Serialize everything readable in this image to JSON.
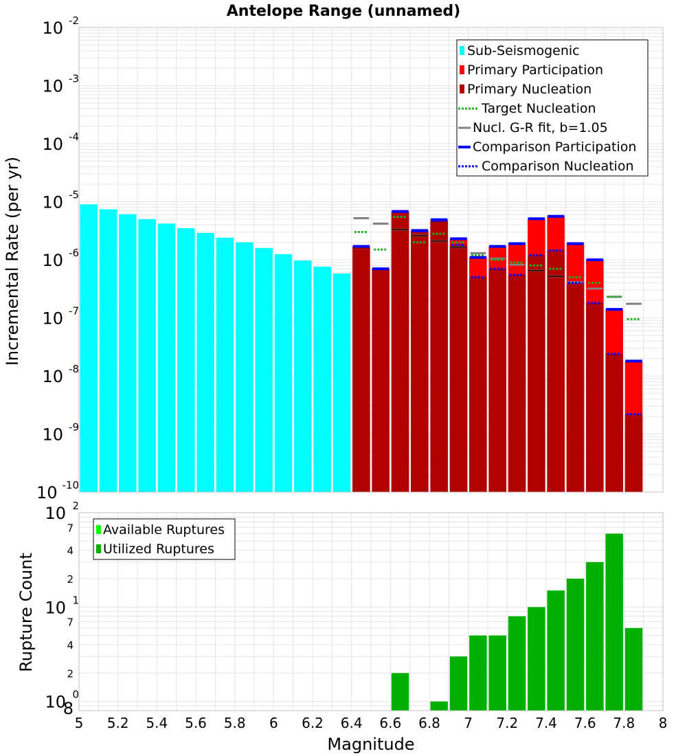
{
  "chart_data": [
    {
      "type": "bar",
      "title": "Antelope Range (unnamed)",
      "xlabel": "",
      "ylabel": "Incremental Rate (per yr)",
      "yscale": "log",
      "ylim": [
        1e-10,
        0.01
      ],
      "xlim": [
        5.0,
        8.0
      ],
      "x_ticks": [
        "5",
        "5.2",
        "5.4",
        "5.6",
        "5.8",
        "6",
        "6.2",
        "6.4",
        "6.6",
        "6.8",
        "7",
        "7.2",
        "7.4",
        "7.6",
        "7.8",
        "8"
      ],
      "y_ticks": [
        {
          "base": "10",
          "exp": "-10"
        },
        {
          "base": "10",
          "exp": "-9"
        },
        {
          "base": "10",
          "exp": "-8"
        },
        {
          "base": "10",
          "exp": "-7"
        },
        {
          "base": "10",
          "exp": "-6"
        },
        {
          "base": "10",
          "exp": "-5"
        },
        {
          "base": "10",
          "exp": "-4"
        },
        {
          "base": "10",
          "exp": "-3"
        },
        {
          "base": "10",
          "exp": "-2"
        }
      ],
      "legend_position": "top-right",
      "legend": [
        {
          "label": "Sub-Seismogenic",
          "color": "#00ffff",
          "style": "bar"
        },
        {
          "label": "Primary Participation",
          "color": "#ff0000",
          "style": "bar"
        },
        {
          "label": "Primary Nucleation",
          "color": "#b00000",
          "style": "bar"
        },
        {
          "label": "Target Nucleation",
          "color": "#22b022",
          "style": "dotted"
        },
        {
          "label": "Nucl. G-R fit, b=1.05",
          "color": "#808080",
          "style": "solid"
        },
        {
          "label": "Comparison Participation",
          "color": "#0000ff",
          "style": "thick"
        },
        {
          "label": "Comparison Nucleation",
          "color": "#0000ff",
          "style": "dotted"
        }
      ],
      "series": [
        {
          "name": "Sub-Seismogenic",
          "color": "#00ffff",
          "x": [
            5.05,
            5.15,
            5.25,
            5.35,
            5.45,
            5.55,
            5.65,
            5.75,
            5.85,
            5.95,
            6.05,
            6.15,
            6.25,
            6.35
          ],
          "values": [
            9e-06,
            7.4e-06,
            6.1e-06,
            5e-06,
            4.2e-06,
            3.5e-06,
            2.9e-06,
            2.4e-06,
            2e-06,
            1.6e-06,
            1.25e-06,
            9.7e-07,
            7.6e-07,
            5.8e-07
          ]
        },
        {
          "name": "Primary Participation",
          "color": "#ff0000",
          "x": [
            6.45,
            6.55,
            6.65,
            6.75,
            6.85,
            6.95,
            7.05,
            7.15,
            7.25,
            7.35,
            7.45,
            7.55,
            7.65,
            7.75,
            7.85
          ],
          "values": [
            1.7e-06,
            7e-07,
            6.8e-06,
            3.2e-06,
            4.9e-06,
            2.3e-06,
            1.1e-06,
            1.7e-06,
            1.9e-06,
            5.1e-06,
            5.6e-06,
            1.9e-06,
            1e-06,
            1.4e-07,
            1.8e-08
          ]
        },
        {
          "name": "Primary Nucleation",
          "color": "#b00000",
          "x": [
            6.45,
            6.55,
            6.65,
            6.75,
            6.85,
            6.95,
            7.05,
            7.15,
            7.25,
            7.35,
            7.45,
            7.55,
            7.65,
            7.75,
            7.85
          ],
          "values": [
            1.7e-06,
            7e-07,
            6.8e-06,
            3.1e-06,
            4.7e-06,
            1.8e-06,
            5e-07,
            7e-07,
            5.5e-07,
            1.2e-06,
            1.45e-06,
            4e-07,
            1.8e-07,
            2.4e-08,
            2.2e-09
          ]
        },
        {
          "name": "Target Nucleation",
          "color": "#22b022",
          "x": [
            6.45,
            6.55,
            6.65,
            6.75,
            6.85,
            6.95,
            7.05,
            7.15,
            7.25,
            7.35,
            7.45,
            7.55,
            7.65,
            7.75,
            7.85
          ],
          "values": [
            3e-06,
            1.5e-06,
            5.5e-06,
            2e-06,
            2.8e-06,
            2e-06,
            1.2e-06,
            1e-06,
            9e-07,
            8e-07,
            7e-07,
            5e-07,
            4e-07,
            2.3e-07,
            9.5e-08
          ]
        },
        {
          "name": "Nucl. G-R fit, b=1.05",
          "color": "#808080",
          "x": [
            6.45,
            6.55,
            6.65,
            6.75,
            6.85,
            6.95,
            7.05,
            7.15,
            7.25,
            7.35,
            7.45,
            7.55,
            7.65,
            7.75,
            7.85
          ],
          "values": [
            5.2e-06,
            4.2e-06,
            3.3e-06,
            2.6e-06,
            2.1e-06,
            1.65e-06,
            1.3e-06,
            1.05e-06,
            8.2e-07,
            6.5e-07,
            5.2e-07,
            4.1e-07,
            3.2e-07,
            2.3e-07,
            1.75e-07
          ]
        },
        {
          "name": "Comparison Participation",
          "color": "#0000ff",
          "x": [
            6.45,
            6.55,
            6.65,
            6.75,
            6.85,
            6.95,
            7.05,
            7.15,
            7.25,
            7.35,
            7.45,
            7.55,
            7.65,
            7.75,
            7.85
          ],
          "values": [
            1.7e-06,
            7e-07,
            6.8e-06,
            3.2e-06,
            4.9e-06,
            2.3e-06,
            1.1e-06,
            1.7e-06,
            1.9e-06,
            5.1e-06,
            5.6e-06,
            1.9e-06,
            1e-06,
            1.4e-07,
            1.8e-08
          ]
        },
        {
          "name": "Comparison Nucleation",
          "color": "#0000ff",
          "x": [
            6.45,
            6.55,
            6.65,
            6.75,
            6.85,
            6.95,
            7.05,
            7.15,
            7.25,
            7.35,
            7.45,
            7.55,
            7.65,
            7.75,
            7.85
          ],
          "values": [
            1.7e-06,
            7e-07,
            6.8e-06,
            3.1e-06,
            4.7e-06,
            1.8e-06,
            5e-07,
            7e-07,
            5.5e-07,
            1.2e-06,
            1.45e-06,
            4e-07,
            1.8e-07,
            2.4e-08,
            2.2e-09
          ]
        }
      ]
    },
    {
      "type": "bar",
      "title": "",
      "xlabel": "Magnitude",
      "ylabel": "Rupture Count",
      "yscale": "log",
      "ylim": [
        0.8,
        100
      ],
      "xlim": [
        5.0,
        8.0
      ],
      "x_ticks": [
        "5",
        "5.2",
        "5.4",
        "5.6",
        "5.8",
        "6",
        "6.2",
        "6.4",
        "6.6",
        "6.8",
        "7",
        "7.2",
        "7.4",
        "7.6",
        "7.8",
        "8"
      ],
      "y_ticks": [
        {
          "value": 1,
          "base": "10",
          "exp": "0"
        },
        {
          "value": 10,
          "base": "10",
          "exp": "1"
        },
        {
          "value": 100,
          "base": "10",
          "exp": "2"
        }
      ],
      "y_minor_labels": [
        {
          "value": 0.8,
          "label": "8"
        },
        {
          "value": 2,
          "label": "2"
        },
        {
          "value": 4,
          "label": "4"
        },
        {
          "value": 7,
          "label": "7"
        },
        {
          "value": 20,
          "label": "2"
        },
        {
          "value": 40,
          "label": "4"
        },
        {
          "value": 70,
          "label": "7"
        }
      ],
      "legend_position": "top-left",
      "legend": [
        {
          "label": "Available Ruptures",
          "color": "#00ff00",
          "style": "bar"
        },
        {
          "label": "Utilized Ruptures",
          "color": "#00b000",
          "style": "bar"
        }
      ],
      "series": [
        {
          "name": "Utilized Ruptures",
          "color": "#00b000",
          "x": [
            6.65,
            6.85,
            6.95,
            7.05,
            7.15,
            7.25,
            7.35,
            7.45,
            7.55,
            7.65,
            7.75,
            7.85
          ],
          "values": [
            2,
            1,
            3,
            5,
            5,
            8,
            10,
            15,
            20,
            30,
            60,
            6
          ]
        }
      ]
    }
  ]
}
